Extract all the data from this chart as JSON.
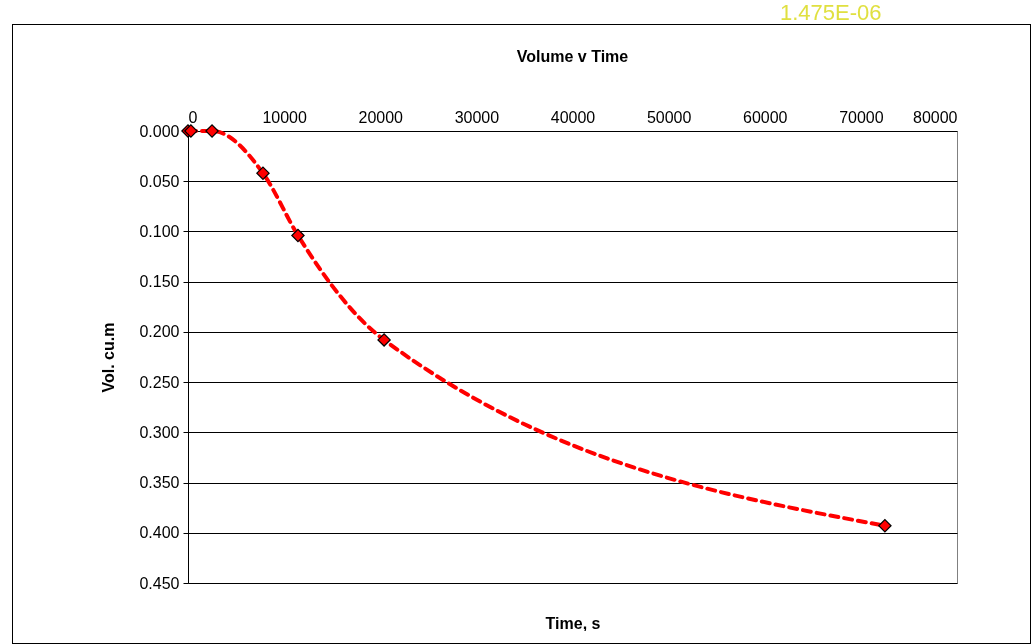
{
  "chart_data": {
    "type": "line",
    "title": "Volume v Time",
    "xlabel": "Time, s",
    "ylabel": "Vol. cu.m",
    "annotations": [
      "1.475E-06"
    ],
    "series": [
      {
        "color": "#ff0000",
        "x": [
          0,
          300,
          2500,
          7800,
          11440,
          20400,
          72500
        ],
        "values": [
          0,
          0,
          0,
          0.042,
          0.104,
          0.208,
          0.393
        ]
      }
    ],
    "xlim": [
      0,
      80000
    ],
    "xticks": [
      0,
      10000,
      20000,
      30000,
      40000,
      50000,
      60000,
      70000,
      80000
    ],
    "ylim": [
      0.45,
      0
    ],
    "yticks": [
      {
        "value": 0,
        "label": "0.000"
      },
      {
        "value": 0.05,
        "label": "0.050"
      },
      {
        "value": 0.1,
        "label": "0.100"
      },
      {
        "value": 0.15,
        "label": "0.150"
      },
      {
        "value": 0.2,
        "label": "0.200"
      },
      {
        "value": 0.25,
        "label": "0.250"
      },
      {
        "value": 0.3,
        "label": "0.300"
      },
      {
        "value": 0.35,
        "label": "0.350"
      },
      {
        "value": 0.4,
        "label": "0.400"
      },
      {
        "value": 0.45,
        "label": "0.450"
      }
    ],
    "grid": "y",
    "legend": false,
    "marker": "diamond",
    "line_style": "dashed"
  }
}
